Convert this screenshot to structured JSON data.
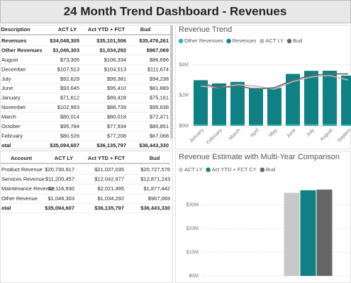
{
  "header": {
    "title": "24 Month Trend Dashboard - Revenues"
  },
  "tables": [
    {
      "columns": [
        "Description",
        "ACT LY",
        "Act YTD + FCT",
        "Bud"
      ],
      "rows": [
        [
          "Revenues",
          "$34,048,305",
          "$35,101,506",
          "$35,476,261"
        ],
        [
          "Other Revenues",
          "$1,046,303",
          "$1,034,292",
          "$967,069"
        ],
        [
          "August",
          "$73,305",
          "$106,334",
          "$86,696"
        ],
        [
          "December",
          "$107,513",
          "$104,513",
          "$111,674"
        ],
        [
          "July",
          "$92,629",
          "$99,381",
          "$94,238"
        ],
        [
          "June",
          "$93,645",
          "$95,410",
          "$81,889"
        ],
        [
          "January",
          "$71,612",
          "$89,428",
          "$75,161"
        ],
        [
          "November",
          "$102,963",
          "$88,739",
          "$95,638"
        ],
        [
          "March",
          "$80,014",
          "$80,018",
          "$72,471"
        ],
        [
          "October",
          "$95,784",
          "$77,934",
          "$80,851"
        ],
        [
          "February",
          "$80,526",
          "$77,208",
          "$67,068"
        ],
        [
          "otal",
          "$35,094,607",
          "$36,135,797",
          "$36,443,330"
        ]
      ]
    },
    {
      "columns": [
        "Account",
        "ACT LY",
        "Act YTD + FCT",
        "Bud"
      ],
      "rows": [
        [
          "Product Revenue",
          "$20,730,917",
          "$21,037,035",
          "$20,727,576"
        ],
        [
          "Services Revenue",
          "$11,200,457",
          "$12,042,977",
          "$12,871,243"
        ],
        [
          "Maintenance Revenue",
          "$2,116,930",
          "$2,021,495",
          "$1,877,442"
        ],
        [
          "Other Revenue",
          "$1,046,303",
          "$1,034,292",
          "$967,069"
        ],
        [
          "otal",
          "$35,094,607",
          "$36,135,797",
          "$36,443,330"
        ]
      ]
    }
  ],
  "chart_data": [
    {
      "type": "combo",
      "title": "Revenue Trend",
      "stacked": true,
      "categories": [
        "January",
        "February",
        "March",
        "April",
        "May",
        "June",
        "July",
        "August",
        "Septem"
      ],
      "series": [
        {
          "name": "Other Revenues",
          "type": "bar",
          "color": "#35b3b3",
          "values": [
            0.09,
            0.08,
            0.08,
            0.08,
            0.08,
            0.1,
            0.1,
            0.11,
            0.09
          ]
        },
        {
          "name": "Revenues",
          "type": "bar",
          "color": "#0f8184",
          "values": [
            2.9,
            2.7,
            2.8,
            2.4,
            2.4,
            3.3,
            3.5,
            3.5,
            3.2
          ]
        },
        {
          "name": "ACT LY",
          "type": "line",
          "color": "#b8b8b8",
          "values": [
            2.6,
            2.5,
            2.7,
            2.6,
            2.4,
            2.9,
            3.2,
            3.3,
            3.0
          ]
        },
        {
          "name": "Bud",
          "type": "line",
          "color": "#666666",
          "values": [
            2.8,
            2.5,
            2.6,
            2.4,
            2.5,
            3.0,
            3.3,
            3.4,
            3.4
          ]
        }
      ],
      "ylim": [
        0,
        4.3
      ],
      "yticks": [
        {
          "value": 0,
          "label": "$0M"
        },
        {
          "value": 2,
          "label": "$2M"
        },
        {
          "value": 4,
          "label": "$4M"
        }
      ],
      "grid": true
    },
    {
      "type": "bar",
      "title": "Revenue Estimate with Multi-Year Comparison",
      "categories": [
        null
      ],
      "series": [
        {
          "name": "ACT LY",
          "color": "#c8c8c8",
          "values": [
            35.09
          ]
        },
        {
          "name": "Act YTD + FCT CY",
          "color": "#0f8184",
          "values": [
            36.14
          ]
        },
        {
          "name": "Bud",
          "color": "#666666",
          "values": [
            36.44
          ]
        }
      ],
      "ylim": [
        0,
        40
      ],
      "yticks": [
        {
          "value": 0,
          "label": "$0M"
        },
        {
          "value": 10,
          "label": "$10M"
        },
        {
          "value": 20,
          "label": "$20M"
        },
        {
          "value": 30,
          "label": "$30M"
        }
      ],
      "grid": true
    }
  ]
}
